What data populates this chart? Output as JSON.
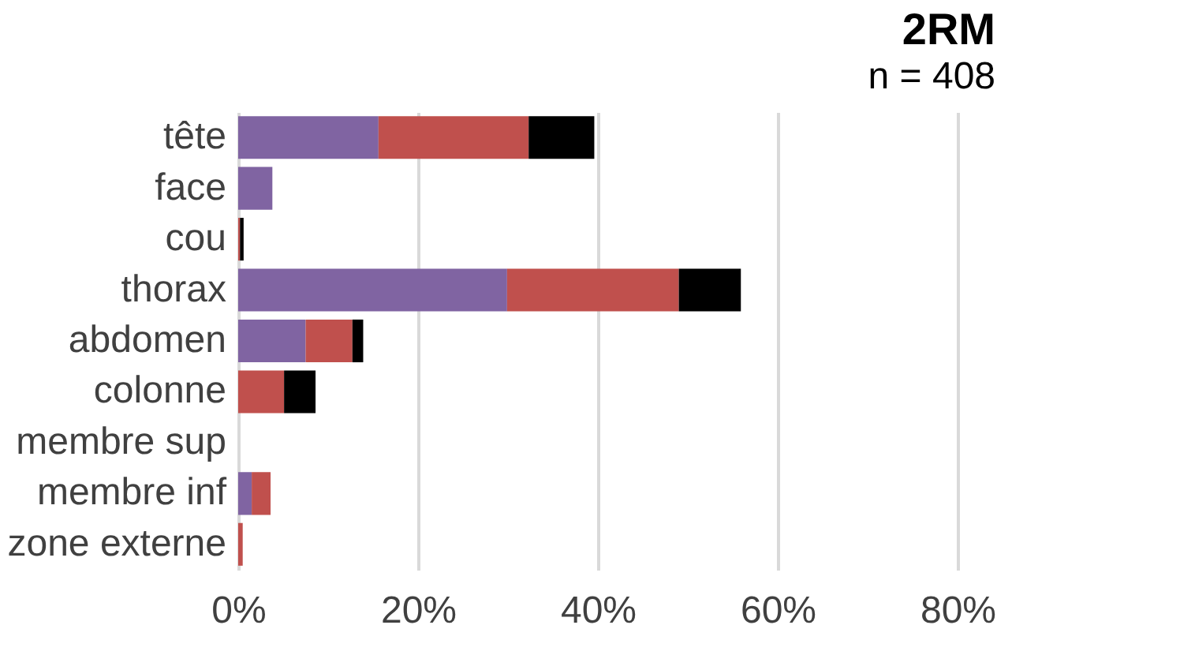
{
  "chart_data": {
    "type": "bar",
    "orientation": "horizontal",
    "stacked": true,
    "title": "2RM",
    "subtitle": "n = 408",
    "categories": [
      "tête",
      "face",
      "cou",
      "thorax",
      "abdomen",
      "colonne",
      "membre sup",
      "membre inf",
      "zone externe"
    ],
    "series": [
      {
        "color": "#8064a2",
        "values": [
          15.6,
          3.8,
          null,
          29.9,
          7.5,
          null,
          null,
          1.5,
          null
        ]
      },
      {
        "color": "#c0504d",
        "values": [
          16.7,
          null,
          0.2,
          19.1,
          5.2,
          5.1,
          null,
          2.1,
          0.5
        ]
      },
      {
        "color": "#000000",
        "values": [
          7.3,
          null,
          0.4,
          6.9,
          1.2,
          3.5,
          null,
          null,
          null
        ]
      }
    ],
    "xlim": [
      0,
      80
    ],
    "xticks": [
      {
        "value": 0,
        "label": "0%"
      },
      {
        "value": 20,
        "label": "20%"
      },
      {
        "value": 40,
        "label": "40%"
      },
      {
        "value": 60,
        "label": "60%"
      },
      {
        "value": 80,
        "label": "80%"
      }
    ],
    "grid": "x",
    "legend": false
  }
}
